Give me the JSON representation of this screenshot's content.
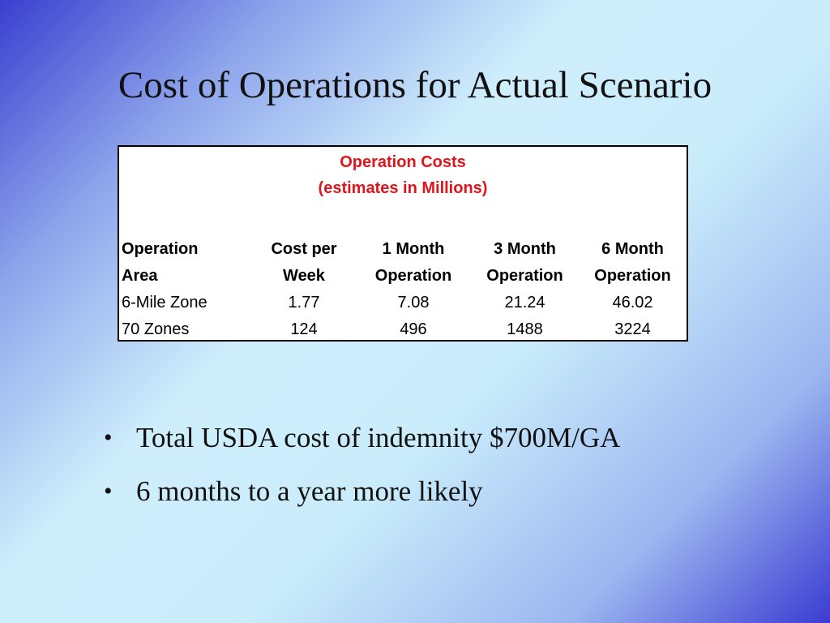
{
  "slide": {
    "title": "Cost of Operations for Actual Scenario"
  },
  "table": {
    "title_line1": "Operation Costs",
    "title_line2": "(estimates in Millions)",
    "headers_line1": [
      "Operation",
      "Cost per",
      "1 Month",
      "3 Month",
      "6 Month"
    ],
    "headers_line2": [
      "Area",
      "Week",
      "Operation",
      "Operation",
      "Operation"
    ],
    "rows": [
      [
        "6-Mile Zone",
        "1.77",
        "7.08",
        "21.24",
        "46.02"
      ],
      [
        "70 Zones",
        "124",
        "496",
        "1488",
        "3224"
      ]
    ],
    "title_color": "#e0141c"
  },
  "bullets": {
    "marker": "•",
    "items": [
      "Total USDA cost of indemnity $700M/GA",
      "6 months to a year more likely"
    ]
  }
}
